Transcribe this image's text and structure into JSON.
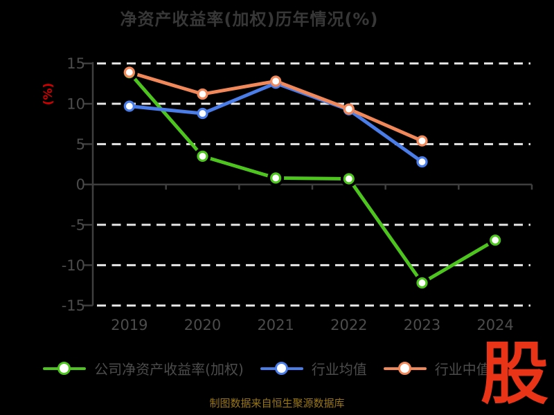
{
  "chart_data": {
    "type": "line",
    "title": "净资产收益率(加权)历年情况(%)",
    "ylabel": "(%)",
    "xlabel": "",
    "categories": [
      "2019",
      "2020",
      "2021",
      "2022",
      "2023",
      "2024"
    ],
    "series": [
      {
        "name": "公司净资产收益率(加权)",
        "color": "#4ec41f",
        "values": [
          13.85,
          3.5,
          0.8,
          0.7,
          -12.2,
          -6.9
        ]
      },
      {
        "name": "行业均值",
        "color": "#4a7de8",
        "values": [
          9.7,
          8.8,
          12.55,
          9.25,
          2.8,
          null
        ]
      },
      {
        "name": "行业中值",
        "color": "#f0885a",
        "values": [
          13.9,
          11.2,
          12.8,
          9.35,
          5.4,
          null
        ]
      }
    ],
    "ylim": [
      -15,
      15
    ],
    "yticks": [
      15,
      10,
      5,
      0,
      -5,
      -10,
      -15
    ],
    "grid": "dashed-white-horizontal",
    "legend_position": "bottom",
    "marker": "circle-white-fill"
  },
  "style": {
    "background": "#000000",
    "grid_color": "#e8e8e8",
    "axis_color": "#3f3f3f",
    "tick_text_color": "#4c4c4c",
    "ylabel_color": "#d40000",
    "footer_text_color": "#997718"
  },
  "footer": {
    "source_text": "制图数据来自恒生聚源数据库"
  },
  "watermark": {
    "text": "股",
    "color": "#e93418"
  }
}
